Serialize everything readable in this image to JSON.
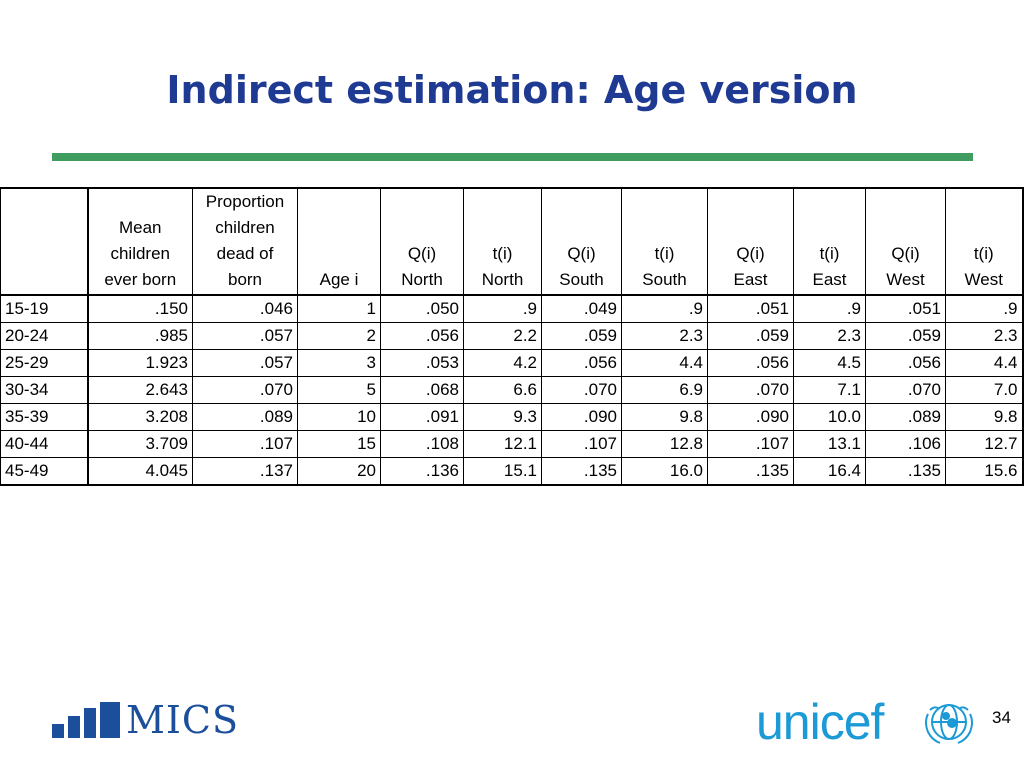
{
  "slide": {
    "title": "Indirect estimation: Age version",
    "page_number": "34"
  },
  "table": {
    "headers": [
      [
        ""
      ],
      [
        "Mean",
        "children",
        "ever born"
      ],
      [
        "Proportion",
        "children",
        "dead of",
        "born"
      ],
      [
        "Age i"
      ],
      [
        "Q(i)",
        "North"
      ],
      [
        "t(i)",
        "North"
      ],
      [
        "Q(i)",
        "South"
      ],
      [
        "t(i)",
        "South"
      ],
      [
        "Q(i)",
        "East"
      ],
      [
        "t(i)",
        "East"
      ],
      [
        "Q(i)",
        "West"
      ],
      [
        "t(i)",
        "West"
      ]
    ],
    "rows": [
      [
        "15-19",
        ".150",
        ".046",
        "1",
        ".050",
        ".9",
        ".049",
        ".9",
        ".051",
        ".9",
        ".051",
        ".9"
      ],
      [
        "20-24",
        ".985",
        ".057",
        "2",
        ".056",
        "2.2",
        ".059",
        "2.3",
        ".059",
        "2.3",
        ".059",
        "2.3"
      ],
      [
        "25-29",
        "1.923",
        ".057",
        "3",
        ".053",
        "4.2",
        ".056",
        "4.4",
        ".056",
        "4.5",
        ".056",
        "4.4"
      ],
      [
        "30-34",
        "2.643",
        ".070",
        "5",
        ".068",
        "6.6",
        ".070",
        "6.9",
        ".070",
        "7.1",
        ".070",
        "7.0"
      ],
      [
        "35-39",
        "3.208",
        ".089",
        "10",
        ".091",
        "9.3",
        ".090",
        "9.8",
        ".090",
        "10.0",
        ".089",
        "9.8"
      ],
      [
        "40-44",
        "3.709",
        ".107",
        "15",
        ".108",
        "12.1",
        ".107",
        "12.8",
        ".107",
        "13.1",
        ".106",
        "12.7"
      ],
      [
        "45-49",
        "4.045",
        ".137",
        "20",
        ".136",
        "15.1",
        ".135",
        "16.0",
        ".135",
        "16.4",
        ".135",
        "15.6"
      ]
    ]
  },
  "logos": {
    "mics_text": "MICS",
    "unicef_text": "unicef",
    "mics_color": "#1b4f9c",
    "unicef_color": "#1c9ad6"
  },
  "colors": {
    "title": "#1f3a93",
    "rule": "#3f9e5f"
  }
}
